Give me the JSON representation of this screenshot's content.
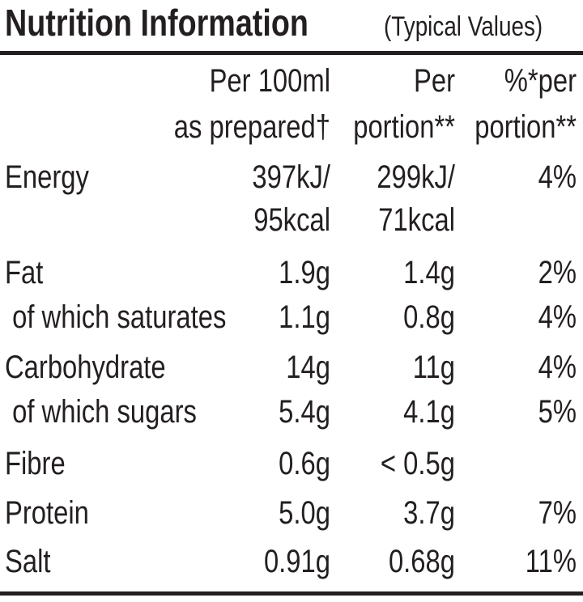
{
  "header": {
    "title": "Nutrition Information",
    "subtitle": "(Typical Values)"
  },
  "table": {
    "columns": [
      [
        "Per 100ml",
        "as prepared†"
      ],
      [
        "Per",
        "portion**"
      ],
      [
        "%*per",
        "portion**"
      ]
    ],
    "rows": [
      [
        "Energy",
        [
          "397kJ/",
          "95kcal"
        ],
        [
          "299kJ/",
          "71kcal"
        ],
        [
          "4%"
        ]
      ],
      [
        "Fat",
        [
          "1.9g"
        ],
        [
          "1.4g"
        ],
        [
          "2%"
        ]
      ],
      [
        " of which saturates",
        [
          "1.1g"
        ],
        [
          "0.8g"
        ],
        [
          "4%"
        ]
      ],
      [
        "Carbohydrate",
        [
          "14g"
        ],
        [
          "11g"
        ],
        [
          "4%"
        ]
      ],
      [
        " of which sugars",
        [
          "5.4g"
        ],
        [
          "4.1g"
        ],
        [
          "5%"
        ]
      ],
      [
        "Fibre",
        [
          "0.6g"
        ],
        [
          "< 0.5g"
        ],
        null
      ],
      [
        "Protein",
        [
          "5.0g"
        ],
        [
          "3.7g"
        ],
        [
          "7%"
        ]
      ],
      [
        "Salt",
        [
          "0.91g"
        ],
        [
          "0.68g"
        ],
        [
          "11%"
        ]
      ]
    ]
  }
}
